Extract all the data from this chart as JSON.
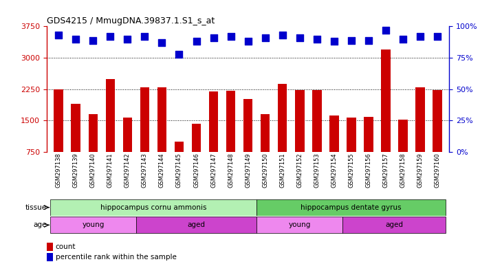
{
  "title": "GDS4215 / MmugDNA.39837.1.S1_s_at",
  "samples": [
    "GSM297138",
    "GSM297139",
    "GSM297140",
    "GSM297141",
    "GSM297142",
    "GSM297143",
    "GSM297144",
    "GSM297145",
    "GSM297146",
    "GSM297147",
    "GSM297148",
    "GSM297149",
    "GSM297150",
    "GSM297151",
    "GSM297152",
    "GSM297153",
    "GSM297154",
    "GSM297155",
    "GSM297156",
    "GSM297157",
    "GSM297158",
    "GSM297159",
    "GSM297160"
  ],
  "counts": [
    2250,
    1900,
    1650,
    2500,
    1580,
    2300,
    2290,
    1000,
    1430,
    2200,
    2220,
    2020,
    1650,
    2380,
    2230,
    2230,
    1620,
    1580,
    1590,
    3200,
    1520,
    2290,
    2230
  ],
  "percentiles": [
    93,
    90,
    89,
    92,
    90,
    92,
    87,
    78,
    88,
    91,
    92,
    88,
    91,
    93,
    91,
    90,
    88,
    89,
    89,
    97,
    90,
    92,
    92
  ],
  "bar_color": "#cc0000",
  "dot_color": "#0000cc",
  "ylim_left": [
    750,
    3750
  ],
  "ylim_right": [
    0,
    100
  ],
  "yticks_left": [
    750,
    1500,
    2250,
    3000,
    3750
  ],
  "yticks_right": [
    0,
    25,
    50,
    75,
    100
  ],
  "grid_values": [
    1500,
    2250,
    3000
  ],
  "tissue_groups": [
    {
      "label": "hippocampus cornu ammonis",
      "start": 0,
      "end": 12,
      "color": "#b3f0b3"
    },
    {
      "label": "hippocampus dentate gyrus",
      "start": 12,
      "end": 23,
      "color": "#66cc66"
    }
  ],
  "age_groups": [
    {
      "label": "young",
      "start": 0,
      "end": 5,
      "color": "#ee88ee"
    },
    {
      "label": "aged",
      "start": 5,
      "end": 12,
      "color": "#cc44cc"
    },
    {
      "label": "young",
      "start": 12,
      "end": 17,
      "color": "#ee88ee"
    },
    {
      "label": "aged",
      "start": 17,
      "end": 23,
      "color": "#cc44cc"
    }
  ],
  "bg_color": "#ffffff",
  "axis_color_left": "#cc0000",
  "axis_color_right": "#0000cc",
  "bar_width": 0.55,
  "dot_size": 45,
  "tissue_color_light": "#b3f0b3",
  "tissue_color_dark": "#66cc66",
  "age_color_light": "#ee88ee",
  "age_color_dark": "#cc44cc"
}
